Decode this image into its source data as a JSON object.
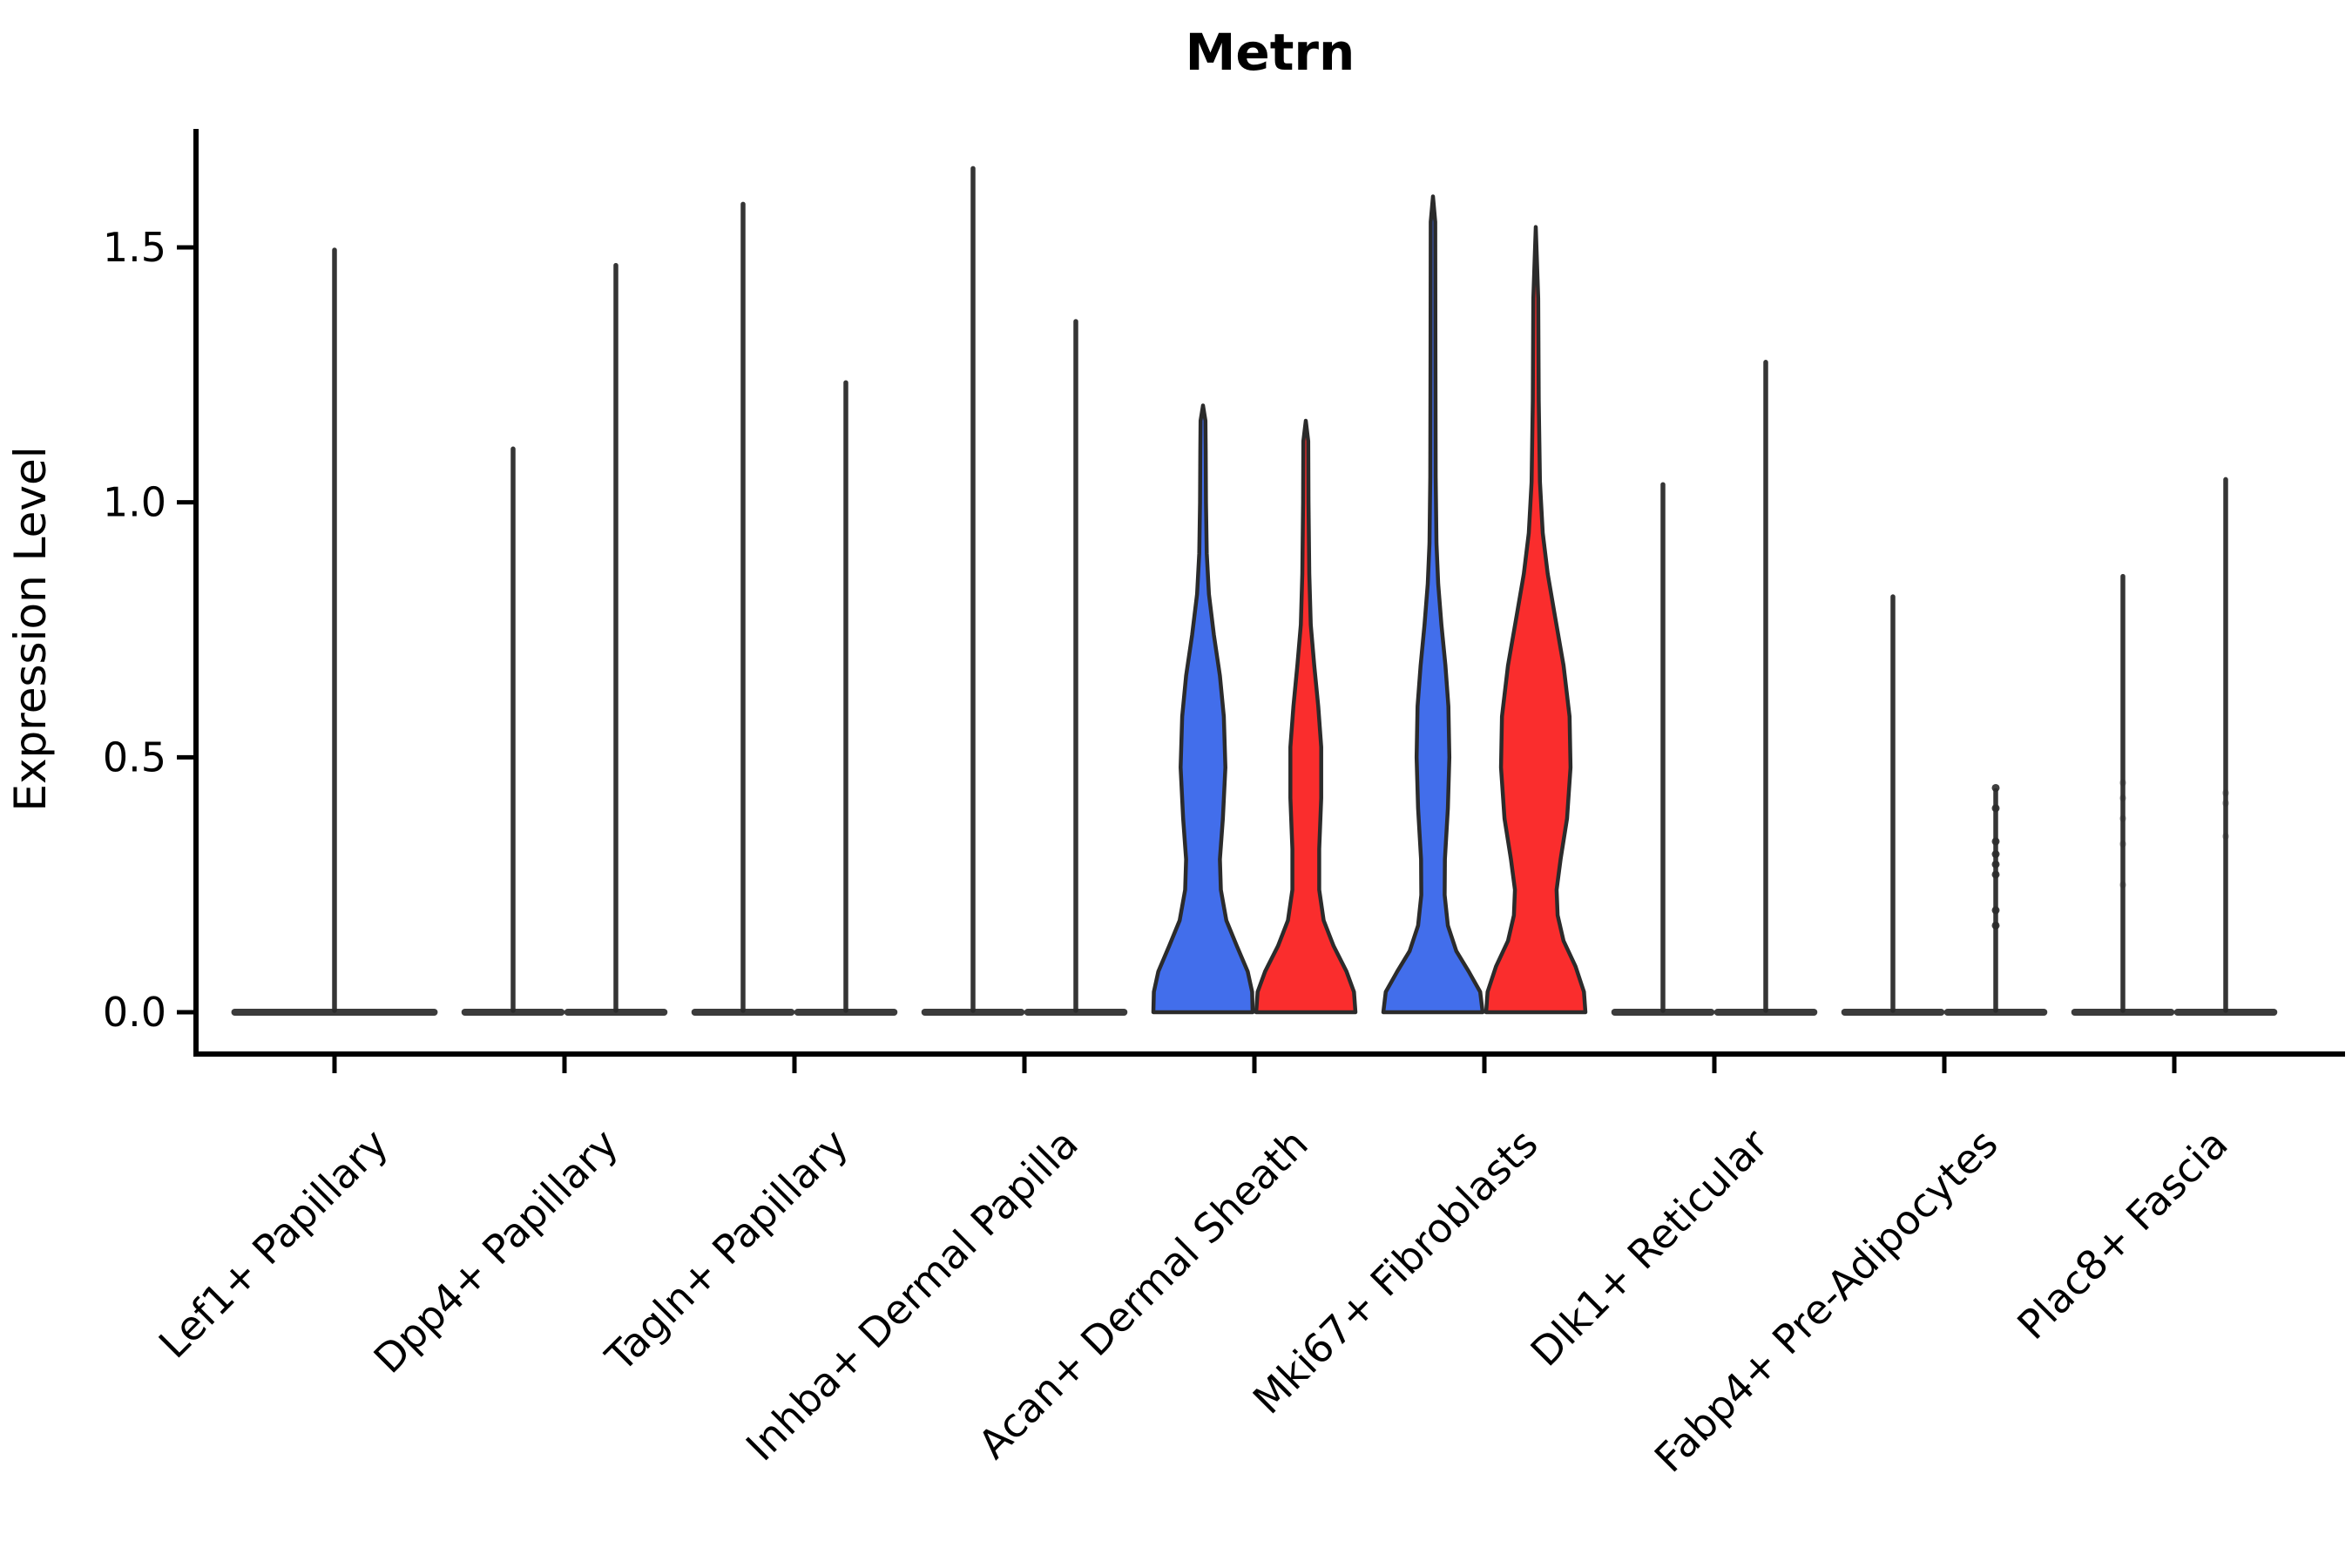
{
  "figure": {
    "title": "Metrn",
    "ylabel": "Expression Level"
  },
  "colors": {
    "blue": "#426EEB",
    "red": "#FA2D2D",
    "outline": "#2B2B2B",
    "axis": "#000000",
    "text": "#000000"
  },
  "chart_data": {
    "type": "violin",
    "title": "Metrn",
    "xlabel": "",
    "ylabel": "Expression Level",
    "ylim": [
      -0.08,
      1.73
    ],
    "yticks": [
      0.0,
      0.5,
      1.0,
      1.5
    ],
    "ytick_labels": [
      "0.0",
      "0.5",
      "1.0",
      "1.5"
    ],
    "grid": false,
    "legend": "none",
    "x_tick_rotation_deg": 45,
    "categories": [
      "Lef1+ Papillary",
      "Dpp4+ Papillary",
      "Tagln+ Papillary",
      "Inhba+ Dermal Papilla",
      "Acan+ Dermal Sheath",
      "Mki67+ Fibroblasts",
      "Dlk1+ Reticular",
      "Fabp4+ Pre-Adipocytes",
      "Plac8+ Fascia"
    ],
    "layout_hint": "two slim violins per category (left blue group, right red group) except Lef1+ Papillary which shows a single centered violin; most violins collapse to a flat base at 0 with a thin density spike; only Acan+ Dermal Sheath and Mki67+ Fibroblasts show wide filled violins",
    "violins": [
      {
        "category": "Lef1+ Papillary",
        "items": [
          {
            "position": "center",
            "max_expression": 1.5,
            "render": "spike",
            "fill": null
          }
        ]
      },
      {
        "category": "Dpp4+ Papillary",
        "items": [
          {
            "position": "left",
            "max_expression": 1.11,
            "render": "spike",
            "fill": null
          },
          {
            "position": "right",
            "max_expression": 1.47,
            "render": "spike",
            "fill": null
          }
        ]
      },
      {
        "category": "Tagln+ Papillary",
        "items": [
          {
            "position": "left",
            "max_expression": 1.59,
            "render": "spike",
            "fill": null
          },
          {
            "position": "right",
            "max_expression": 1.24,
            "render": "spike",
            "fill": null
          }
        ]
      },
      {
        "category": "Inhba+ Dermal Papilla",
        "items": [
          {
            "position": "left",
            "max_expression": 1.66,
            "render": "spike",
            "fill": null
          },
          {
            "position": "right",
            "max_expression": 1.36,
            "render": "spike",
            "fill": null
          }
        ]
      },
      {
        "category": "Acan+ Dermal Sheath",
        "items": [
          {
            "position": "left",
            "max_expression": 1.19,
            "render": "violin",
            "fill": "blue",
            "width_profile": [
              [
                0,
                1.0
              ],
              [
                0.04,
                0.99
              ],
              [
                0.08,
                0.9
              ],
              [
                0.13,
                0.68
              ],
              [
                0.18,
                0.47
              ],
              [
                0.24,
                0.36
              ],
              [
                0.3,
                0.34
              ],
              [
                0.38,
                0.4
              ],
              [
                0.48,
                0.45
              ],
              [
                0.58,
                0.42
              ],
              [
                0.66,
                0.34
              ],
              [
                0.74,
                0.22
              ],
              [
                0.82,
                0.12
              ],
              [
                0.9,
                0.075
              ],
              [
                1.0,
                0.06
              ],
              [
                1.1,
                0.055
              ],
              [
                1.16,
                0.05
              ],
              [
                1.19,
                0.0
              ]
            ]
          },
          {
            "position": "right",
            "max_expression": 1.16,
            "render": "violin",
            "fill": "red",
            "width_profile": [
              [
                0,
                1.0
              ],
              [
                0.04,
                0.97
              ],
              [
                0.08,
                0.82
              ],
              [
                0.13,
                0.56
              ],
              [
                0.18,
                0.36
              ],
              [
                0.24,
                0.27
              ],
              [
                0.32,
                0.27
              ],
              [
                0.42,
                0.31
              ],
              [
                0.52,
                0.31
              ],
              [
                0.6,
                0.25
              ],
              [
                0.68,
                0.17
              ],
              [
                0.76,
                0.1
              ],
              [
                0.86,
                0.07
              ],
              [
                1.0,
                0.055
              ],
              [
                1.12,
                0.05
              ],
              [
                1.16,
                0.0
              ]
            ]
          }
        ]
      },
      {
        "category": "Mki67+ Fibroblasts",
        "items": [
          {
            "position": "left",
            "max_expression": 1.6,
            "render": "violin",
            "fill": "blue",
            "width_profile": [
              [
                0,
                1.0
              ],
              [
                0.04,
                0.95
              ],
              [
                0.08,
                0.72
              ],
              [
                0.12,
                0.47
              ],
              [
                0.17,
                0.3
              ],
              [
                0.23,
                0.235
              ],
              [
                0.3,
                0.24
              ],
              [
                0.4,
                0.3
              ],
              [
                0.5,
                0.33
              ],
              [
                0.6,
                0.31
              ],
              [
                0.68,
                0.25
              ],
              [
                0.76,
                0.17
              ],
              [
                0.84,
                0.105
              ],
              [
                0.92,
                0.07
              ],
              [
                1.05,
                0.055
              ],
              [
                1.3,
                0.05
              ],
              [
                1.55,
                0.045
              ],
              [
                1.6,
                0.0
              ]
            ]
          },
          {
            "position": "right",
            "max_expression": 1.54,
            "render": "violin",
            "fill": "red",
            "width_profile": [
              [
                0,
                1.0
              ],
              [
                0.04,
                0.97
              ],
              [
                0.09,
                0.8
              ],
              [
                0.14,
                0.56
              ],
              [
                0.19,
                0.44
              ],
              [
                0.24,
                0.42
              ],
              [
                0.3,
                0.5
              ],
              [
                0.38,
                0.63
              ],
              [
                0.48,
                0.7
              ],
              [
                0.58,
                0.68
              ],
              [
                0.68,
                0.56
              ],
              [
                0.78,
                0.38
              ],
              [
                0.86,
                0.24
              ],
              [
                0.94,
                0.14
              ],
              [
                1.04,
                0.085
              ],
              [
                1.2,
                0.06
              ],
              [
                1.4,
                0.05
              ],
              [
                1.54,
                0.0
              ]
            ]
          }
        ]
      },
      {
        "category": "Dlk1+ Reticular",
        "items": [
          {
            "position": "left",
            "max_expression": 1.04,
            "render": "spike",
            "fill": null
          },
          {
            "position": "right",
            "max_expression": 1.28,
            "render": "spike",
            "fill": null
          }
        ]
      },
      {
        "category": "Fabp4+ Pre-Adipocytes",
        "items": [
          {
            "position": "left",
            "max_expression": 0.82,
            "render": "spike",
            "fill": null
          },
          {
            "position": "right",
            "max_expression": 0.44,
            "render": "spike",
            "fill": null,
            "points": [
              0.44,
              0.4,
              0.335,
              0.31,
              0.29,
              0.27,
              0.2,
              0.17
            ]
          }
        ]
      },
      {
        "category": "Plac8+ Fascia",
        "items": [
          {
            "position": "left",
            "max_expression": 0.86,
            "render": "spike",
            "fill": null,
            "faint_points": [
              0.45,
              0.42,
              0.38,
              0.33,
              0.25
            ]
          },
          {
            "position": "right",
            "max_expression": 1.05,
            "render": "spike",
            "fill": null,
            "faint_points": [
              0.43,
              0.41,
              0.345
            ]
          }
        ]
      }
    ]
  }
}
